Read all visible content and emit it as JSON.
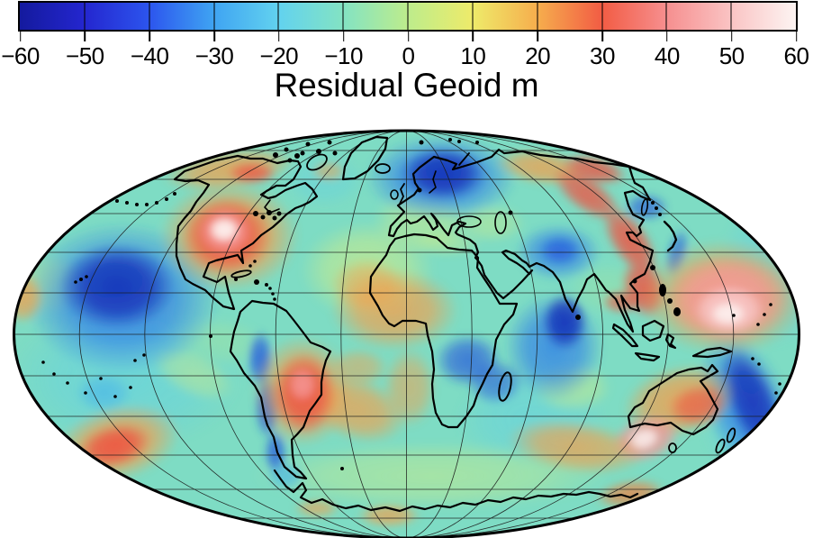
{
  "title": "Residual Geoid m",
  "colorbar": {
    "min": -60,
    "max": 60,
    "unit": "m",
    "ticks": [
      "−60",
      "−50",
      "−40",
      "−30",
      "−20",
      "−10",
      "0",
      "10",
      "20",
      "30",
      "40",
      "50",
      "60"
    ],
    "tick_values": [
      -60,
      -50,
      -40,
      -30,
      -20,
      -10,
      0,
      10,
      20,
      30,
      40,
      50,
      60
    ],
    "stops": [
      {
        "value": -60,
        "color": "#141a9e"
      },
      {
        "value": -50,
        "color": "#2426cf"
      },
      {
        "value": -40,
        "color": "#2c55ee"
      },
      {
        "value": -30,
        "color": "#3fa4f2"
      },
      {
        "value": -20,
        "color": "#62d2ef"
      },
      {
        "value": -10,
        "color": "#83e3c3"
      },
      {
        "value": 0,
        "color": "#bdec8c"
      },
      {
        "value": 10,
        "color": "#eeeb6a"
      },
      {
        "value": 20,
        "color": "#f6ae4d"
      },
      {
        "value": 30,
        "color": "#f25c44"
      },
      {
        "value": 40,
        "color": "#f68f8f"
      },
      {
        "value": 50,
        "color": "#fac4c4"
      },
      {
        "value": 60,
        "color": "#fdf4f2"
      }
    ],
    "outline_color": "#000000",
    "divider_color": "#000000"
  },
  "map": {
    "projection": "mollweide",
    "center_longitude_deg": 0,
    "graticule": {
      "lon_step_deg": 30,
      "lat_step_deg": 15,
      "line_color": "#000000"
    },
    "coastline_color": "#000000",
    "features": [
      {
        "name": "southeast-north-america-high",
        "approx_value_m": 55
      },
      {
        "name": "northeast-pacific-low",
        "approx_value_m": -45
      },
      {
        "name": "iceland-north-atlantic-low",
        "approx_value_m": -50
      },
      {
        "name": "central-asia-low",
        "approx_value_m": -30
      },
      {
        "name": "indian-ocean-low",
        "approx_value_m": -50
      },
      {
        "name": "east-asia-arc-high",
        "approx_value_m": 35
      },
      {
        "name": "northwest-pacific-high",
        "approx_value_m": 55
      },
      {
        "name": "north-africa-atlantic-high",
        "approx_value_m": 25
      },
      {
        "name": "congo-low",
        "approx_value_m": -25
      },
      {
        "name": "brazil-high",
        "approx_value_m": 40
      },
      {
        "name": "andes-low",
        "approx_value_m": -35
      },
      {
        "name": "south-pacific-high",
        "approx_value_m": 35
      },
      {
        "name": "australia-high",
        "approx_value_m": 30
      },
      {
        "name": "south-of-australia-high",
        "approx_value_m": 50
      },
      {
        "name": "tonga-kermadec-low",
        "approx_value_m": -45
      }
    ]
  }
}
